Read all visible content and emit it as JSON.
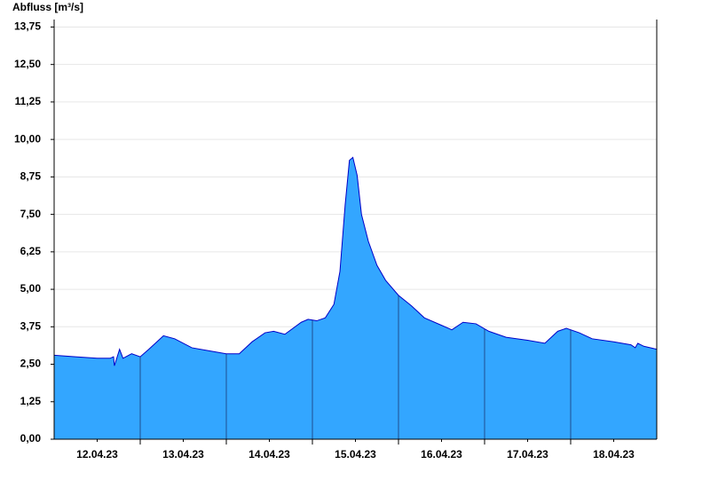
{
  "chart_data": {
    "type": "area",
    "title": "Abfluss [m³/s]",
    "x": [
      0,
      0.25,
      0.5,
      0.65,
      0.69,
      0.7,
      0.76,
      0.8,
      0.9,
      1.0,
      1.1,
      1.27,
      1.4,
      1.6,
      1.8,
      2.0,
      2.15,
      2.3,
      2.45,
      2.55,
      2.68,
      2.87,
      2.95,
      3.05,
      3.15,
      3.25,
      3.32,
      3.38,
      3.43,
      3.47,
      3.52,
      3.57,
      3.65,
      3.75,
      3.85,
      4.0,
      4.15,
      4.3,
      4.5,
      4.62,
      4.75,
      4.9,
      5.05,
      5.25,
      5.5,
      5.7,
      5.85,
      5.95,
      6.1,
      6.25,
      6.5,
      6.7,
      6.75,
      6.78,
      6.85,
      7.0
    ],
    "series": [
      {
        "name": "Abfluss",
        "color": "#33a6ff",
        "line_color": "#0000c8",
        "values": [
          2.8,
          2.75,
          2.7,
          2.7,
          2.75,
          2.45,
          3.0,
          2.7,
          2.85,
          2.75,
          3.0,
          3.45,
          3.35,
          3.05,
          2.95,
          2.85,
          2.85,
          3.25,
          3.55,
          3.6,
          3.5,
          3.9,
          4.0,
          3.95,
          4.05,
          4.5,
          5.6,
          7.8,
          9.3,
          9.4,
          8.8,
          7.5,
          6.6,
          5.8,
          5.3,
          4.8,
          4.45,
          4.05,
          3.8,
          3.65,
          3.9,
          3.85,
          3.6,
          3.4,
          3.3,
          3.2,
          3.6,
          3.7,
          3.55,
          3.35,
          3.25,
          3.15,
          3.05,
          3.2,
          3.1,
          3.0
        ]
      }
    ],
    "xlim": [
      0,
      7
    ],
    "xticks": [
      {
        "value": 0.5,
        "label": "12.04.23"
      },
      {
        "value": 1.5,
        "label": "13.04.23"
      },
      {
        "value": 2.5,
        "label": "14.04.23"
      },
      {
        "value": 3.5,
        "label": "15.04.23"
      },
      {
        "value": 4.5,
        "label": "16.04.23"
      },
      {
        "value": 5.5,
        "label": "17.04.23"
      },
      {
        "value": 6.5,
        "label": "18.04.23"
      }
    ],
    "day_lines": [
      1,
      2,
      3,
      4,
      5,
      6
    ],
    "ylim": [
      0,
      14
    ],
    "yticks": [
      {
        "value": 0,
        "label": "0,00"
      },
      {
        "value": 1.25,
        "label": "1,25"
      },
      {
        "value": 2.5,
        "label": "2,50"
      },
      {
        "value": 3.75,
        "label": "3,75"
      },
      {
        "value": 5,
        "label": "5,00"
      },
      {
        "value": 6.25,
        "label": "6,25"
      },
      {
        "value": 7.5,
        "label": "7,50"
      },
      {
        "value": 8.75,
        "label": "8,75"
      },
      {
        "value": 10,
        "label": "10,00"
      },
      {
        "value": 11.25,
        "label": "11,25"
      },
      {
        "value": 12.5,
        "label": "12,50"
      },
      {
        "value": 13.75,
        "label": "13,75"
      }
    ],
    "grid": true
  }
}
